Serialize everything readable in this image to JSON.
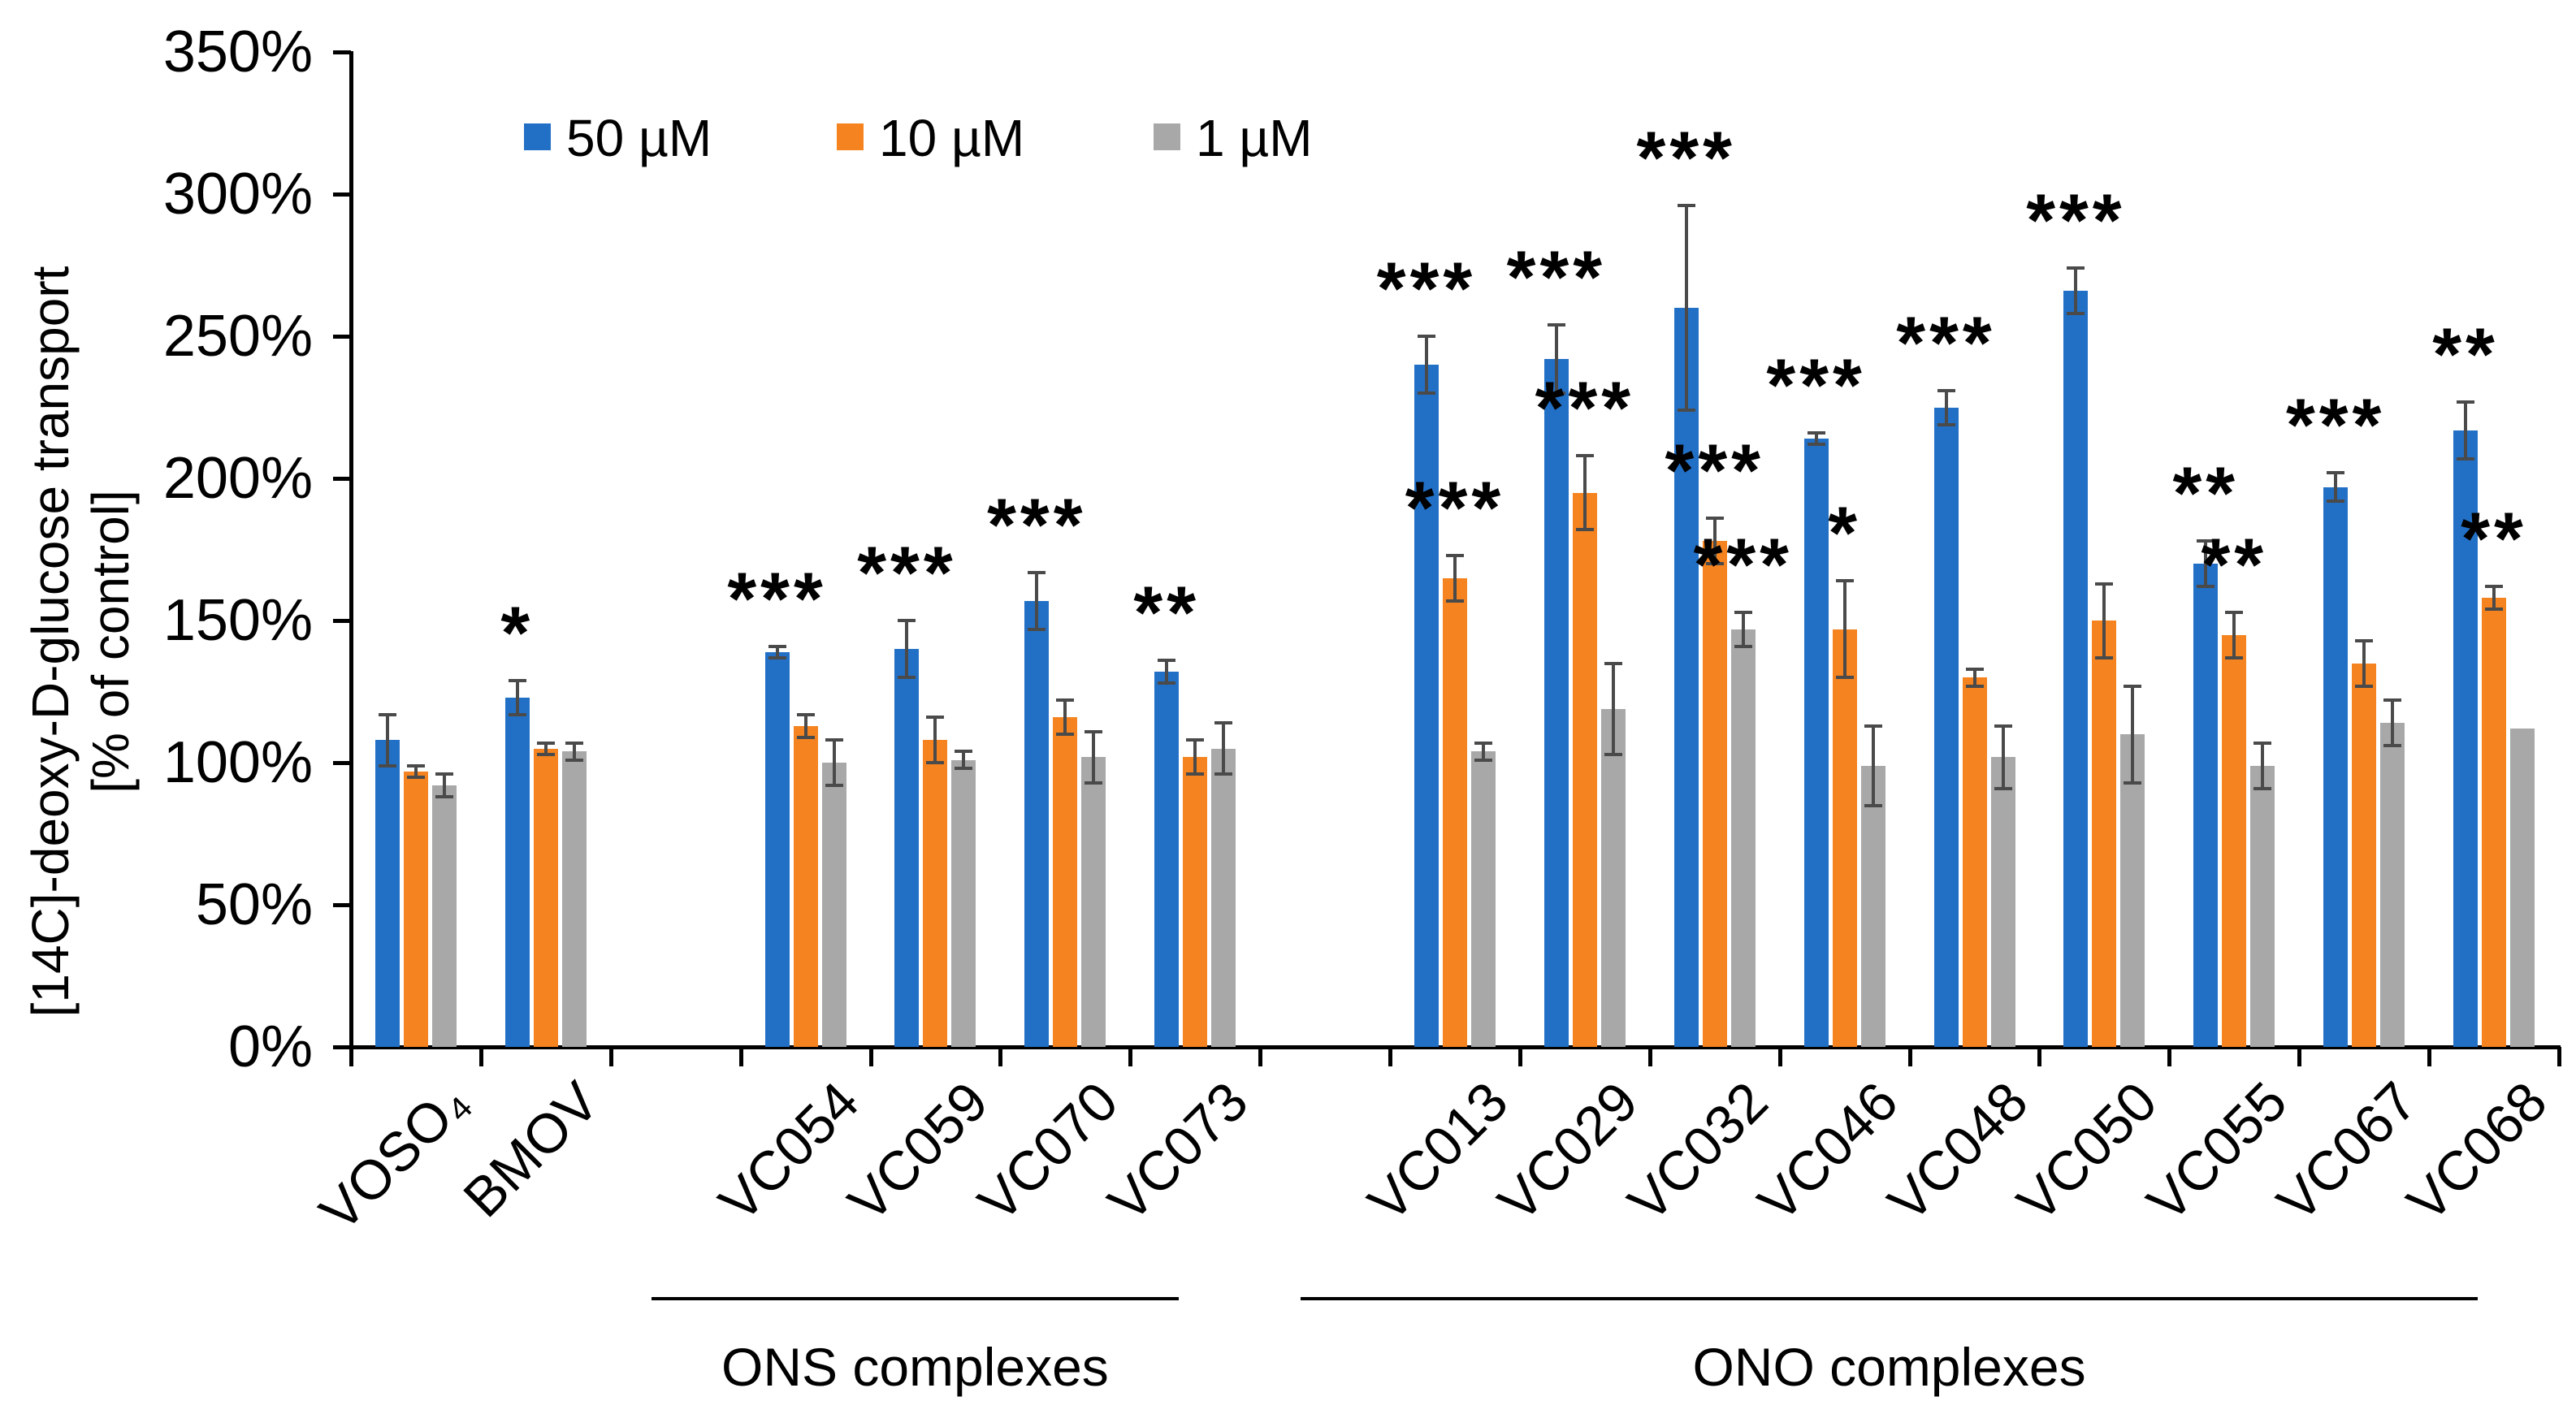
{
  "chart_data": {
    "type": "bar",
    "title": "",
    "y_axis": {
      "label_line1": "[14C]-deoxy-D-glucose transport",
      "label_line2": "[% of control]",
      "unit": "%",
      "min": 0,
      "max": 350,
      "tick_step": 50,
      "ticks": [
        "0%",
        "50%",
        "100%",
        "150%",
        "200%",
        "250%",
        "300%",
        "350%"
      ]
    },
    "legend": [
      {
        "label": "50 µM",
        "color": "#2270C6"
      },
      {
        "label": "10 µM",
        "color": "#F5831F"
      },
      {
        "label": "1 µM",
        "color": "#A8A8A8"
      }
    ],
    "error_bar_color": "#4a4a4a",
    "axis_color": "#000000",
    "grid": false,
    "legend_position": "top",
    "series_names": [
      "50 µM",
      "10 µM",
      "1 µM"
    ],
    "groups": [
      {
        "label": "VOSO₄",
        "slot": 0,
        "bars": [
          {
            "value": 108,
            "error": 9,
            "sig": ""
          },
          {
            "value": 97,
            "error": 2,
            "sig": ""
          },
          {
            "value": 92,
            "error": 4,
            "sig": ""
          }
        ]
      },
      {
        "label": "BMOV",
        "slot": 1,
        "bars": [
          {
            "value": 123,
            "error": 6,
            "sig": "*"
          },
          {
            "value": 105,
            "error": 2,
            "sig": ""
          },
          {
            "value": 104,
            "error": 3,
            "sig": ""
          }
        ]
      },
      {
        "label": "VC054",
        "slot": 3,
        "bars": [
          {
            "value": 139,
            "error": 2,
            "sig": "***"
          },
          {
            "value": 113,
            "error": 4,
            "sig": ""
          },
          {
            "value": 100,
            "error": 8,
            "sig": ""
          }
        ]
      },
      {
        "label": "VC059",
        "slot": 4,
        "bars": [
          {
            "value": 140,
            "error": 10,
            "sig": "***"
          },
          {
            "value": 108,
            "error": 8,
            "sig": ""
          },
          {
            "value": 101,
            "error": 3,
            "sig": ""
          }
        ]
      },
      {
        "label": "VC070",
        "slot": 5,
        "bars": [
          {
            "value": 157,
            "error": 10,
            "sig": "***"
          },
          {
            "value": 116,
            "error": 6,
            "sig": ""
          },
          {
            "value": 102,
            "error": 9,
            "sig": ""
          }
        ]
      },
      {
        "label": "VC073",
        "slot": 6,
        "bars": [
          {
            "value": 132,
            "error": 4,
            "sig": "**"
          },
          {
            "value": 102,
            "error": 6,
            "sig": ""
          },
          {
            "value": 105,
            "error": 9,
            "sig": ""
          }
        ]
      },
      {
        "label": "VC013",
        "slot": 8,
        "bars": [
          {
            "value": 240,
            "error": 10,
            "sig": "***"
          },
          {
            "value": 165,
            "error": 8,
            "sig": "***"
          },
          {
            "value": 104,
            "error": 3,
            "sig": ""
          }
        ]
      },
      {
        "label": "VC029",
        "slot": 9,
        "bars": [
          {
            "value": 242,
            "error": 12,
            "sig": "***"
          },
          {
            "value": 195,
            "error": 13,
            "sig": "***"
          },
          {
            "value": 119,
            "error": 16,
            "sig": ""
          }
        ]
      },
      {
        "label": "VC032",
        "slot": 10,
        "bars": [
          {
            "value": 260,
            "error": 36,
            "sig": "***"
          },
          {
            "value": 178,
            "error": 8,
            "sig": "***"
          },
          {
            "value": 147,
            "error": 6,
            "sig": "***"
          }
        ]
      },
      {
        "label": "VC046",
        "slot": 11,
        "bars": [
          {
            "value": 214,
            "error": 2,
            "sig": "***"
          },
          {
            "value": 147,
            "error": 17,
            "sig": "*"
          },
          {
            "value": 99,
            "error": 14,
            "sig": ""
          }
        ]
      },
      {
        "label": "VC048",
        "slot": 12,
        "bars": [
          {
            "value": 225,
            "error": 6,
            "sig": "***"
          },
          {
            "value": 130,
            "error": 3,
            "sig": ""
          },
          {
            "value": 102,
            "error": 11,
            "sig": ""
          }
        ]
      },
      {
        "label": "VC050",
        "slot": 13,
        "bars": [
          {
            "value": 266,
            "error": 8,
            "sig": "***"
          },
          {
            "value": 150,
            "error": 13,
            "sig": ""
          },
          {
            "value": 110,
            "error": 17,
            "sig": ""
          }
        ]
      },
      {
        "label": "VC055",
        "slot": 14,
        "bars": [
          {
            "value": 170,
            "error": 8,
            "sig": "**"
          },
          {
            "value": 145,
            "error": 8,
            "sig": "**"
          },
          {
            "value": 99,
            "error": 8,
            "sig": ""
          }
        ]
      },
      {
        "label": "VC067",
        "slot": 15,
        "bars": [
          {
            "value": 197,
            "error": 5,
            "sig": "***"
          },
          {
            "value": 135,
            "error": 8,
            "sig": ""
          },
          {
            "value": 114,
            "error": 8,
            "sig": ""
          }
        ]
      },
      {
        "label": "VC068",
        "slot": 16,
        "bars": [
          {
            "value": 217,
            "error": 10,
            "sig": "**"
          },
          {
            "value": 158,
            "error": 4,
            "sig": "**"
          },
          {
            "value": 112,
            "error": 0,
            "sig": ""
          }
        ]
      }
    ],
    "sections": [
      {
        "label": "ONS complexes",
        "from_slot": 3,
        "to_slot": 6
      },
      {
        "label": "ONO complexes",
        "from_slot": 8,
        "to_slot": 16
      }
    ]
  }
}
